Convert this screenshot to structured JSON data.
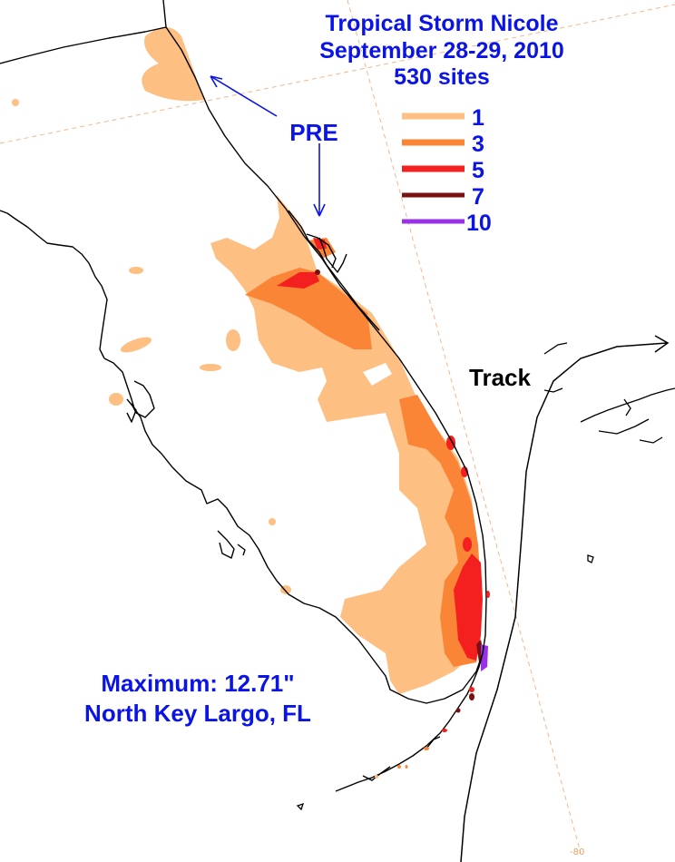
{
  "title": {
    "line1": "Tropical Storm Nicole",
    "line2": "September 28-29, 2010",
    "line3": "530 sites"
  },
  "legend": [
    {
      "label": "1",
      "color": "#fdbf82"
    },
    {
      "label": "3",
      "color": "#fb8536"
    },
    {
      "label": "5",
      "color": "#f41f1f"
    },
    {
      "label": "7",
      "color": "#7a1010"
    },
    {
      "label": "10",
      "color": "#9a30e8"
    }
  ],
  "labels": {
    "pre": "PRE",
    "track": "Track",
    "longitude_tick": "-80"
  },
  "maximum": {
    "line1": "Maximum:  12.71\"",
    "line2": "North Key Largo, FL"
  }
}
